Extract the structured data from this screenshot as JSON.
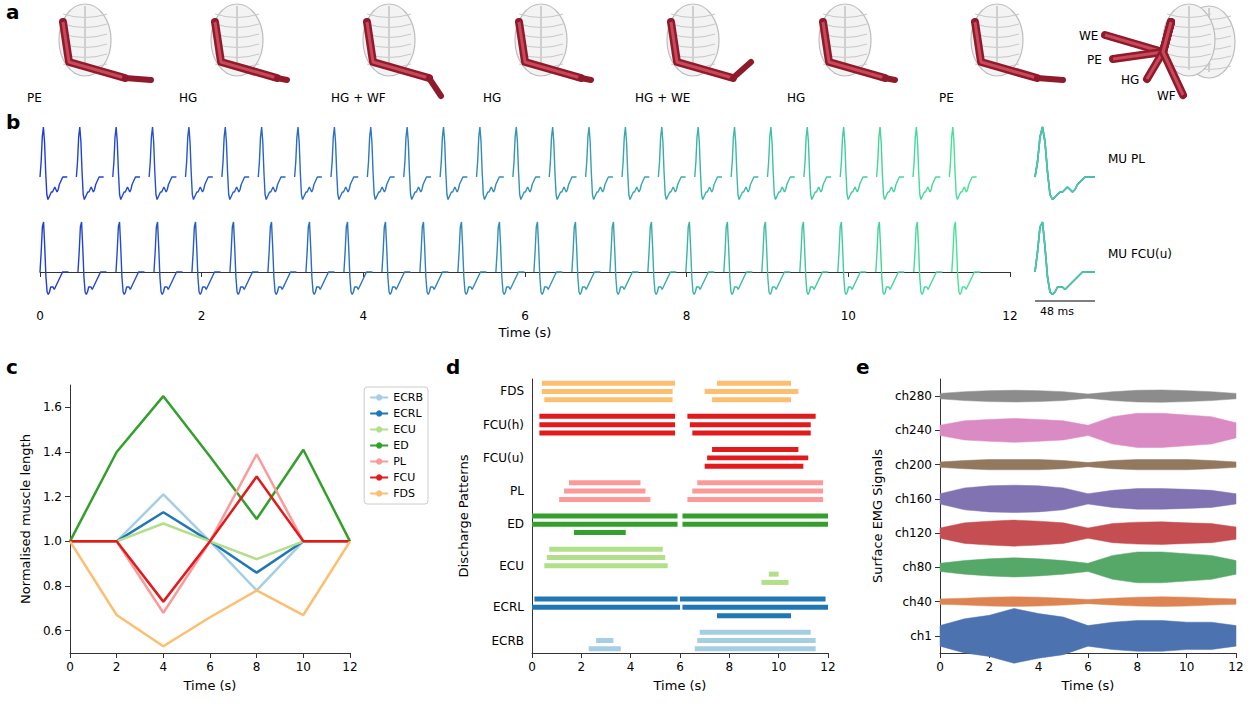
{
  "chart_data": [
    {
      "label": "a",
      "type": "diagram",
      "poses": [
        "PE",
        "HG",
        "HG + WF",
        "HG",
        "HG + WE",
        "HG",
        "PE"
      ],
      "overlay_poses": [
        "WE",
        "PE",
        "HG",
        "WF"
      ]
    },
    {
      "label": "b",
      "type": "waveform_train",
      "xlabel": "Time (s)",
      "xlim": [
        0,
        12
      ],
      "xticks": [
        0,
        2,
        4,
        6,
        8,
        10,
        12
      ],
      "tick_labels": "x",
      "waveform_ms": [
        0,
        2,
        4,
        6,
        8,
        10,
        12,
        14,
        16,
        18,
        20,
        22,
        24,
        26,
        28,
        30,
        32,
        34,
        36,
        38,
        40,
        42,
        44,
        46,
        48
      ],
      "scale_bar": {
        "value": 48,
        "label": "48 ms"
      },
      "series": [
        {
          "name": "MU PL",
          "waveform": [
            0,
            0.3,
            0.8,
            1.0,
            0.7,
            0.1,
            -0.35,
            -0.45,
            -0.4,
            -0.35,
            -0.3,
            -0.3,
            -0.25,
            -0.2,
            -0.25,
            -0.3,
            -0.25,
            -0.15,
            -0.1,
            -0.05,
            0,
            0,
            0,
            0,
            0
          ],
          "discharge_times": [
            0,
            0.45,
            0.9,
            1.35,
            1.8,
            2.25,
            2.7,
            3.15,
            3.6,
            4.05,
            4.5,
            4.95,
            5.4,
            5.85,
            6.3,
            6.75,
            7.2,
            7.65,
            8.1,
            8.55,
            9.0,
            9.45,
            9.9,
            10.35,
            10.8,
            11.25
          ]
        },
        {
          "name": "MU FCU(u)",
          "waveform": [
            0,
            0.4,
            0.9,
            1.0,
            0.5,
            -0.1,
            -0.4,
            -0.45,
            -0.4,
            -0.3,
            -0.3,
            -0.3,
            -0.35,
            -0.3,
            -0.25,
            -0.2,
            -0.15,
            -0.1,
            -0.05,
            0,
            0,
            0,
            0,
            0,
            0
          ],
          "discharge_times": [
            0,
            0.47,
            0.94,
            1.41,
            1.88,
            2.35,
            2.82,
            3.29,
            3.76,
            4.23,
            4.7,
            5.17,
            5.64,
            6.11,
            6.58,
            7.05,
            7.52,
            7.99,
            8.46,
            8.93,
            9.4,
            9.87,
            10.34,
            10.81,
            11.28
          ]
        }
      ]
    },
    {
      "label": "c",
      "type": "line",
      "xlabel": "Time (s)",
      "ylabel": "Normalised muscle length",
      "x": [
        0,
        2,
        4,
        6,
        8,
        10,
        12
      ],
      "xlim": [
        0,
        12
      ],
      "xticks": [
        0,
        2,
        4,
        6,
        8,
        10,
        12
      ],
      "ylim": [
        0.5,
        1.7
      ],
      "yticks": [
        {
          "value": 0.6,
          "label": "0.6"
        },
        {
          "value": 0.8,
          "label": "0.8"
        },
        {
          "value": 1.0,
          "label": "1.0"
        },
        {
          "value": 1.2,
          "label": "1.2"
        },
        {
          "value": 1.4,
          "label": "1.4"
        },
        {
          "value": 1.6,
          "label": "1.6"
        }
      ],
      "legend": "right",
      "grid": false,
      "series": [
        {
          "name": "ECRB",
          "color": "#a6cee3",
          "values": [
            1.0,
            1.0,
            1.21,
            1.0,
            0.78,
            1.0,
            1.0
          ]
        },
        {
          "name": "ECRL",
          "color": "#1f78b4",
          "values": [
            1.0,
            1.0,
            1.13,
            1.0,
            0.86,
            1.0,
            1.0
          ]
        },
        {
          "name": "ECU",
          "color": "#b2df8a",
          "values": [
            1.0,
            1.0,
            1.08,
            1.0,
            0.92,
            1.0,
            1.0
          ]
        },
        {
          "name": "ED",
          "color": "#33a02c",
          "values": [
            1.0,
            1.4,
            1.65,
            1.38,
            1.1,
            1.41,
            1.0
          ]
        },
        {
          "name": "PL",
          "color": "#fb9a99",
          "values": [
            1.0,
            1.0,
            0.68,
            1.0,
            1.39,
            1.0,
            1.0
          ]
        },
        {
          "name": "FCU",
          "color": "#e31a1c",
          "values": [
            1.0,
            1.0,
            0.73,
            1.0,
            1.29,
            1.0,
            1.0
          ]
        },
        {
          "name": "FDS",
          "color": "#fdbf6f",
          "values": [
            1.0,
            0.67,
            0.53,
            0.66,
            0.78,
            0.67,
            1.0
          ]
        }
      ]
    },
    {
      "label": "d",
      "type": "raster",
      "xlabel": "Time (s)",
      "ylabel": "Discharge Patterns",
      "xlim": [
        0,
        12
      ],
      "xticks": [
        0,
        2,
        4,
        6,
        8,
        10,
        12
      ],
      "groups": [
        {
          "name": "ECRB",
          "color": "#a6cee3",
          "rows": [
            [
              [
                2.3,
                3.6
              ],
              [
                6.6,
                11.5
              ]
            ],
            [
              [
                2.6,
                3.3
              ],
              [
                6.7,
                11.5
              ]
            ],
            [
              [
                6.8,
                11.3
              ]
            ]
          ]
        },
        {
          "name": "ECRL",
          "color": "#1f78b4",
          "rows": [
            [
              [
                7.5,
                10.5
              ]
            ],
            [
              [
                0,
                6.0
              ],
              [
                6.1,
                12
              ]
            ],
            [
              [
                0.1,
                5.9
              ],
              [
                6.0,
                11.9
              ]
            ]
          ]
        },
        {
          "name": "ECU",
          "color": "#b2df8a",
          "rows": [
            [
              [
                9.3,
                10.4
              ]
            ],
            [
              [
                9.6,
                10.0
              ]
            ],
            [
              [
                0.5,
                5.5
              ]
            ],
            [
              [
                0.6,
                5.4
              ]
            ],
            [
              [
                0.7,
                5.3
              ]
            ]
          ]
        },
        {
          "name": "ED",
          "color": "#33a02c",
          "rows": [
            [
              [
                1.7,
                3.8
              ]
            ],
            [
              [
                0,
                5.9
              ],
              [
                6.1,
                12
              ]
            ],
            [
              [
                0,
                5.9
              ],
              [
                6.1,
                12
              ]
            ]
          ]
        },
        {
          "name": "PL",
          "color": "#fb9a99",
          "rows": [
            [
              [
                1.1,
                4.8
              ],
              [
                6.3,
                11.8
              ]
            ],
            [
              [
                1.3,
                4.6
              ],
              [
                6.5,
                11.8
              ]
            ],
            [
              [
                1.5,
                4.4
              ],
              [
                6.7,
                11.8
              ]
            ]
          ]
        },
        {
          "name": "FCU(u)",
          "color": "#e31a1c",
          "rows": [
            [
              [
                7.0,
                11.0
              ]
            ],
            [
              [
                7.1,
                11.2
              ]
            ],
            [
              [
                7.3,
                10.8
              ]
            ]
          ]
        },
        {
          "name": "FCU(h)",
          "color": "#e31a1c",
          "rows": [
            [
              [
                0.3,
                5.8
              ],
              [
                6.5,
                11.3
              ]
            ],
            [
              [
                0.3,
                5.8
              ],
              [
                6.4,
                11.3
              ]
            ],
            [
              [
                0.3,
                5.8
              ],
              [
                6.3,
                11.5
              ]
            ]
          ]
        },
        {
          "name": "FDS",
          "color": "#fdbf6f",
          "rows": [
            [
              [
                0.5,
                5.7
              ],
              [
                7.3,
                10.5
              ]
            ],
            [
              [
                0.4,
                5.7
              ],
              [
                7.0,
                10.8
              ]
            ],
            [
              [
                0.4,
                5.8
              ],
              [
                7.5,
                10.5
              ]
            ]
          ]
        }
      ]
    },
    {
      "label": "e",
      "type": "signals",
      "xlabel": "Time (s)",
      "ylabel": "Surface EMG Signals",
      "xlim": [
        0,
        12
      ],
      "xticks": [
        0,
        2,
        4,
        6,
        8,
        10,
        12
      ],
      "t": [
        0,
        1,
        2,
        3,
        4,
        5,
        6,
        7,
        8,
        9,
        10,
        11,
        12
      ],
      "series": [
        {
          "name": "ch1",
          "color": "#4c72b0",
          "envelope": [
            0.3,
            0.5,
            0.6,
            0.8,
            0.65,
            0.55,
            0.3,
            0.4,
            0.45,
            0.45,
            0.4,
            0.4,
            0.3
          ]
        },
        {
          "name": "ch40",
          "color": "#dd8452",
          "envelope": [
            0.08,
            0.1,
            0.13,
            0.14,
            0.13,
            0.1,
            0.06,
            0.1,
            0.13,
            0.14,
            0.13,
            0.1,
            0.08
          ]
        },
        {
          "name": "ch80",
          "color": "#55a868",
          "envelope": [
            0.12,
            0.2,
            0.25,
            0.28,
            0.25,
            0.2,
            0.12,
            0.35,
            0.45,
            0.45,
            0.4,
            0.35,
            0.2
          ]
        },
        {
          "name": "ch120",
          "color": "#c44e52",
          "envelope": [
            0.15,
            0.3,
            0.35,
            0.38,
            0.35,
            0.3,
            0.15,
            0.28,
            0.32,
            0.33,
            0.3,
            0.28,
            0.18
          ]
        },
        {
          "name": "ch160",
          "color": "#8172b2",
          "envelope": [
            0.15,
            0.32,
            0.38,
            0.4,
            0.38,
            0.32,
            0.15,
            0.25,
            0.3,
            0.3,
            0.28,
            0.25,
            0.15
          ]
        },
        {
          "name": "ch200",
          "color": "#937860",
          "envelope": [
            0.08,
            0.12,
            0.15,
            0.15,
            0.15,
            0.12,
            0.06,
            0.12,
            0.15,
            0.15,
            0.15,
            0.12,
            0.08
          ]
        },
        {
          "name": "ch240",
          "color": "#da8bc3",
          "envelope": [
            0.15,
            0.28,
            0.32,
            0.35,
            0.32,
            0.28,
            0.15,
            0.4,
            0.5,
            0.5,
            0.45,
            0.4,
            0.22
          ]
        },
        {
          "name": "ch280",
          "color": "#8c8c8c",
          "envelope": [
            0.08,
            0.13,
            0.16,
            0.17,
            0.16,
            0.13,
            0.06,
            0.13,
            0.17,
            0.18,
            0.16,
            0.13,
            0.08
          ]
        }
      ]
    }
  ]
}
